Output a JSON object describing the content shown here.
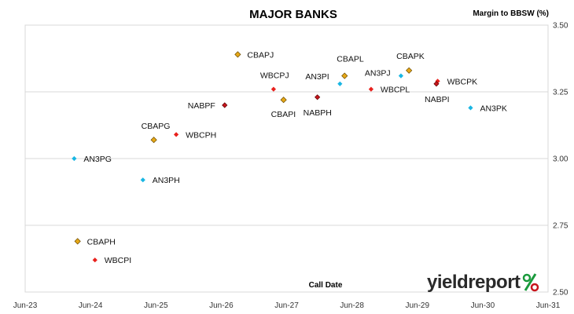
{
  "logo": {
    "text": "yieldreport"
  },
  "chart_data": {
    "type": "scatter",
    "title": "MAJOR BANKS",
    "xlabel": "Call Date",
    "ylabel": "Margin to BBSW (%)",
    "x_ticks": [
      "Jun-23",
      "Jun-24",
      "Jun-25",
      "Jun-26",
      "Jun-27",
      "Jun-28",
      "Jun-29",
      "Jun-30",
      "Jun-31"
    ],
    "x_range": [
      "2023-06-01",
      "2031-06-01"
    ],
    "ylim": [
      2.5,
      3.5
    ],
    "y_ticks": [
      "2.50",
      "2.75",
      "3.00",
      "3.25",
      "3.50"
    ],
    "grid": "horizontal",
    "colors": {
      "CBA": "#e6a817",
      "WBC": "#e8211d",
      "ANZ": "#19b6e3",
      "NAB": "#c8161d"
    },
    "points": [
      {
        "label": "CBAPJ",
        "issuer": "CBA",
        "x": "2026-09-01",
        "y": 3.39
      },
      {
        "label": "CBAPL",
        "issuer": "CBA",
        "x": "2028-04-20",
        "y": 3.31
      },
      {
        "label": "CBAPK",
        "issuer": "CBA",
        "x": "2029-04-15",
        "y": 3.33
      },
      {
        "label": "CBAPI",
        "issuer": "CBA",
        "x": "2027-05-15",
        "y": 3.22
      },
      {
        "label": "CBAPG",
        "issuer": "CBA",
        "x": "2025-05-20",
        "y": 3.07
      },
      {
        "label": "CBAPH",
        "issuer": "CBA",
        "x": "2024-03-20",
        "y": 2.69
      },
      {
        "label": "WBCPJ",
        "issuer": "WBC",
        "x": "2027-03-20",
        "y": 3.26
      },
      {
        "label": "WBCPL",
        "issuer": "WBC",
        "x": "2028-09-15",
        "y": 3.26
      },
      {
        "label": "WBCPK",
        "issuer": "WBC",
        "x": "2029-09-22",
        "y": 3.29
      },
      {
        "label": "WBCPH",
        "issuer": "WBC",
        "x": "2025-09-22",
        "y": 3.09
      },
      {
        "label": "WBCPI",
        "issuer": "WBC",
        "x": "2024-06-25",
        "y": 2.62
      },
      {
        "label": "AN3PI",
        "issuer": "ANZ",
        "x": "2028-03-25",
        "y": 3.28
      },
      {
        "label": "AN3PJ",
        "issuer": "ANZ",
        "x": "2029-03-01",
        "y": 3.31
      },
      {
        "label": "AN3PK",
        "issuer": "ANZ",
        "x": "2030-03-25",
        "y": 3.19
      },
      {
        "label": "AN3PG",
        "issuer": "ANZ",
        "x": "2024-03-01",
        "y": 3.0
      },
      {
        "label": "AN3PH",
        "issuer": "ANZ",
        "x": "2025-03-20",
        "y": 2.92
      },
      {
        "label": "NABPF",
        "issuer": "NAB",
        "x": "2026-06-20",
        "y": 3.2
      },
      {
        "label": "NABPH",
        "issuer": "NAB",
        "x": "2027-11-20",
        "y": 3.23
      },
      {
        "label": "NABPI",
        "issuer": "NAB",
        "x": "2029-09-15",
        "y": 3.28
      }
    ]
  }
}
